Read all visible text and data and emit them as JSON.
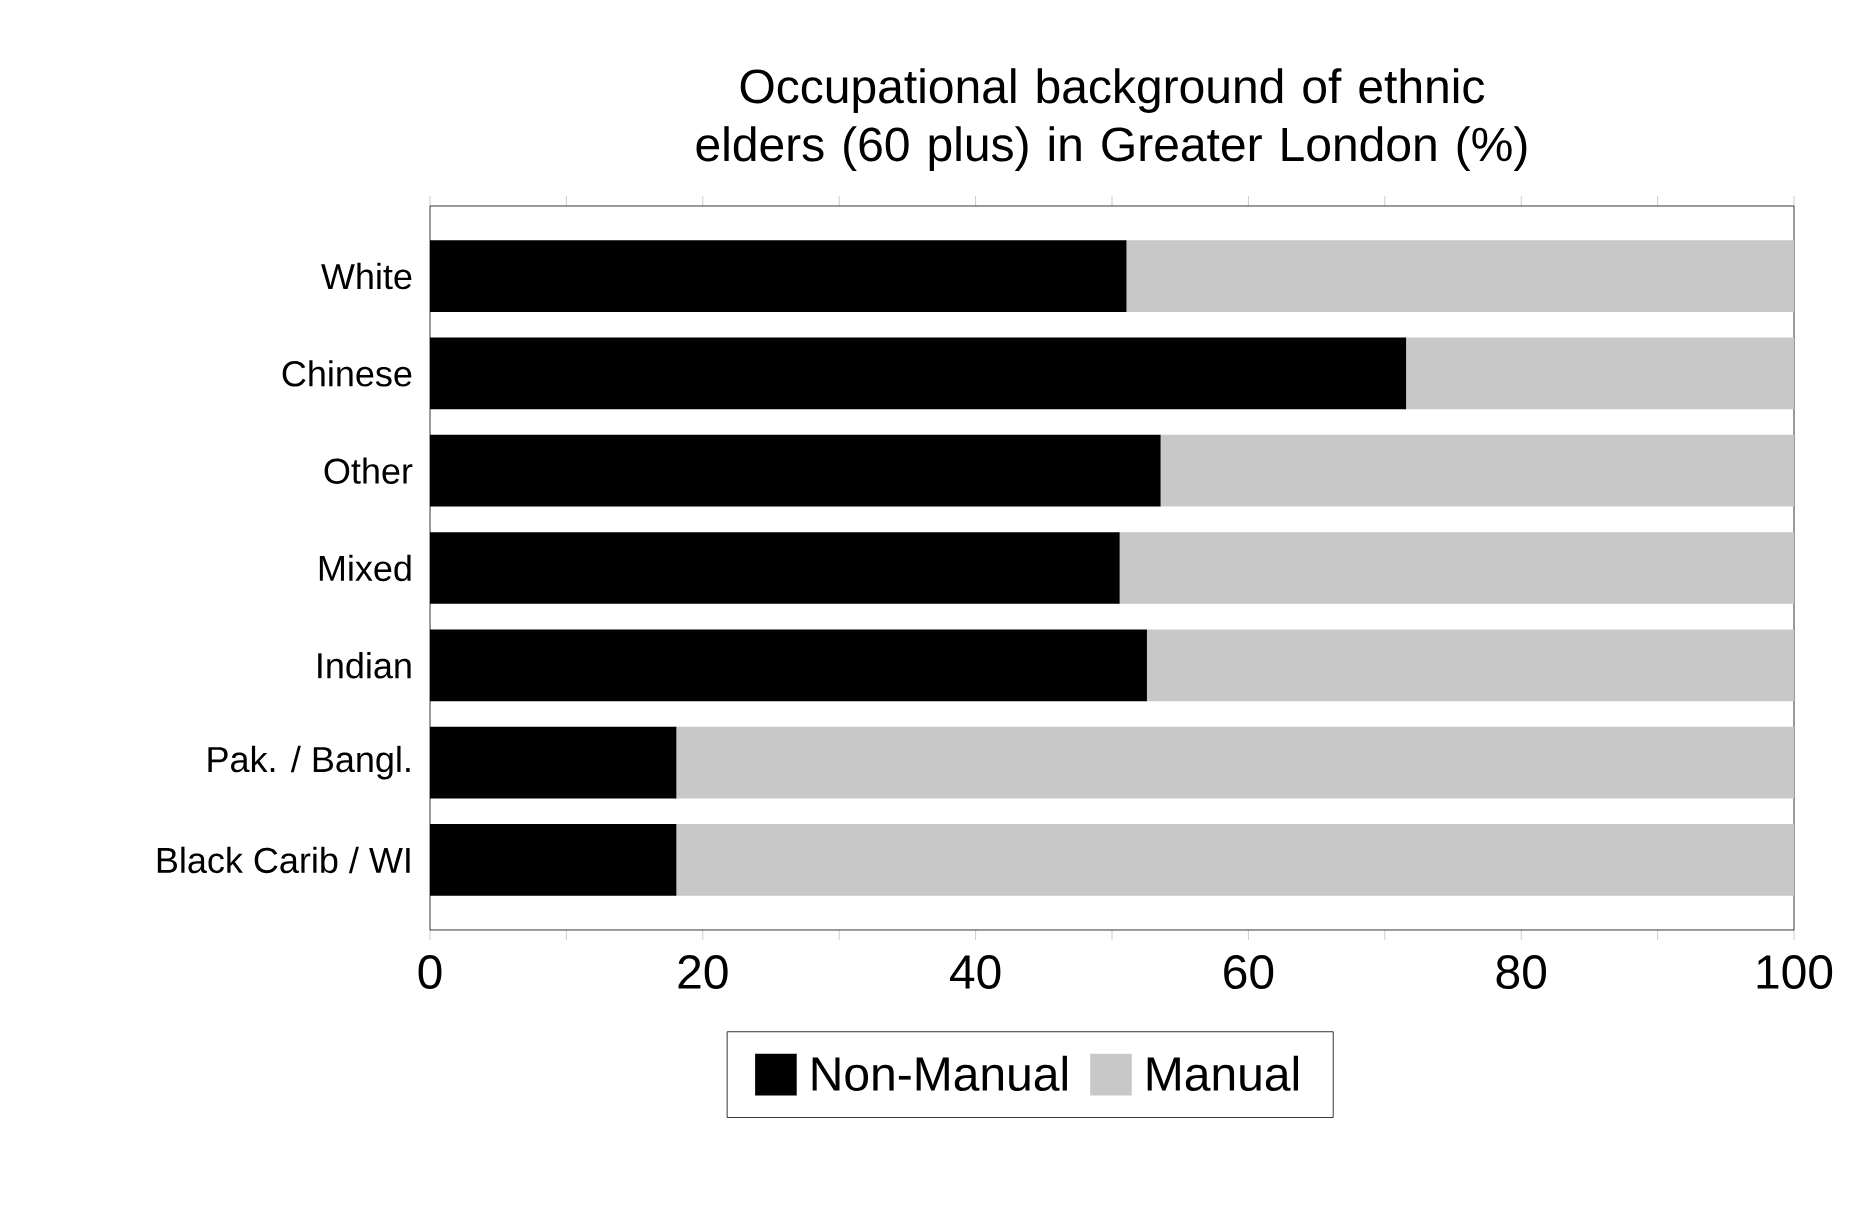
{
  "chart_data": {
    "type": "bar",
    "orientation": "horizontal",
    "stacked": true,
    "title": "Occupational background of ethnic elders (60 plus) in Greater London (%)",
    "categories": [
      "White",
      "Chinese",
      "Other",
      "Mixed",
      "Indian",
      "Pak. / Bangl.",
      "Black Carib / WI"
    ],
    "series": [
      {
        "name": "Non-Manual",
        "color": "#000000",
        "values": [
          51,
          71.5,
          53.5,
          50.5,
          52.5,
          18,
          18
        ]
      },
      {
        "name": "Manual",
        "color": "#c8c8c8",
        "values": [
          49,
          28.5,
          46.5,
          49.5,
          47.5,
          82,
          82
        ]
      }
    ],
    "xlim": [
      0,
      100
    ],
    "xticks": [
      0,
      20,
      40,
      60,
      80,
      100
    ],
    "legend": "bottom"
  }
}
